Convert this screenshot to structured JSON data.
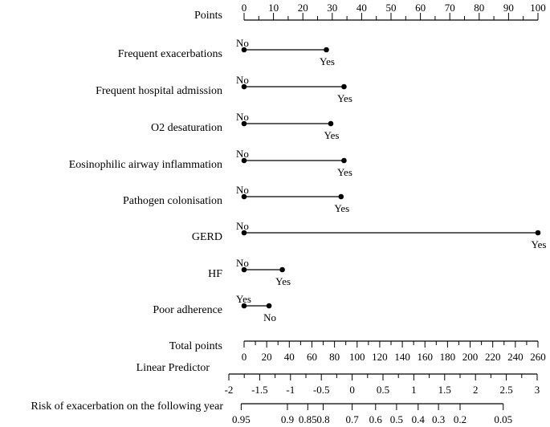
{
  "chart_data": {
    "type": "nomogram",
    "title": "",
    "points_axis": {
      "label": "Points",
      "range": [
        0,
        100
      ],
      "ticks": [
        0,
        10,
        20,
        30,
        40,
        50,
        60,
        70,
        80,
        90,
        100
      ]
    },
    "variables": [
      {
        "label": "Frequent exacerbations",
        "levels": [
          {
            "name": "No",
            "points": 0
          },
          {
            "name": "Yes",
            "points": 28
          }
        ]
      },
      {
        "label": "Frequent hospital admission",
        "levels": [
          {
            "name": "No",
            "points": 0
          },
          {
            "name": "Yes",
            "points": 34
          }
        ]
      },
      {
        "label": "O2 desaturation",
        "levels": [
          {
            "name": "No",
            "points": 0
          },
          {
            "name": "Yes",
            "points": 29.5
          }
        ]
      },
      {
        "label": "Eosinophilic airway inflammation",
        "levels": [
          {
            "name": "No",
            "points": 0
          },
          {
            "name": "Yes",
            "points": 34
          }
        ]
      },
      {
        "label": "Pathogen colonisation",
        "levels": [
          {
            "name": "No",
            "points": 0
          },
          {
            "name": "Yes",
            "points": 33
          }
        ]
      },
      {
        "label": "GERD",
        "levels": [
          {
            "name": "No",
            "points": 0
          },
          {
            "name": "Yes",
            "points": 100
          }
        ]
      },
      {
        "label": "HF",
        "levels": [
          {
            "name": "No",
            "points": 0
          },
          {
            "name": "Yes",
            "points": 13
          }
        ]
      },
      {
        "label": "Poor adherence",
        "levels": [
          {
            "name": "Yes",
            "points": 0
          },
          {
            "name": "No",
            "points": 8.5
          }
        ]
      }
    ],
    "total_points_axis": {
      "label": "Total points",
      "range": [
        0,
        260
      ],
      "ticks": [
        0,
        20,
        40,
        60,
        80,
        100,
        120,
        140,
        160,
        180,
        200,
        220,
        240,
        260
      ]
    },
    "linear_predictor_axis": {
      "label": "Linear Predictor",
      "range": [
        -2,
        3
      ],
      "ticks": [
        -2,
        -1.5,
        -1,
        -0.5,
        0,
        0.5,
        1,
        1.5,
        2,
        2.5,
        3
      ],
      "tick_labels": [
        "-2",
        "-1.5",
        "-1",
        "-0.5",
        "0",
        "0.5",
        "1",
        "1.5",
        "2",
        "2.5",
        "3"
      ]
    },
    "risk_axis": {
      "label": "Risk of exacerbation on the following year",
      "ticks": [
        0.95,
        0.9,
        0.85,
        0.8,
        0.7,
        0.6,
        0.5,
        0.4,
        0.3,
        0.2,
        0.05
      ],
      "tick_labels": [
        "0.95",
        "0.9",
        "0.85",
        "0.8",
        "0.7",
        "0.6",
        "0.5",
        "0.4",
        "0.3",
        "0.2",
        "0.05"
      ],
      "linear_predictor_at_ticks": [
        -1.8,
        -1.05,
        -0.72,
        -0.47,
        0,
        0.38,
        0.72,
        1.07,
        1.4,
        1.75,
        2.45
      ]
    }
  }
}
